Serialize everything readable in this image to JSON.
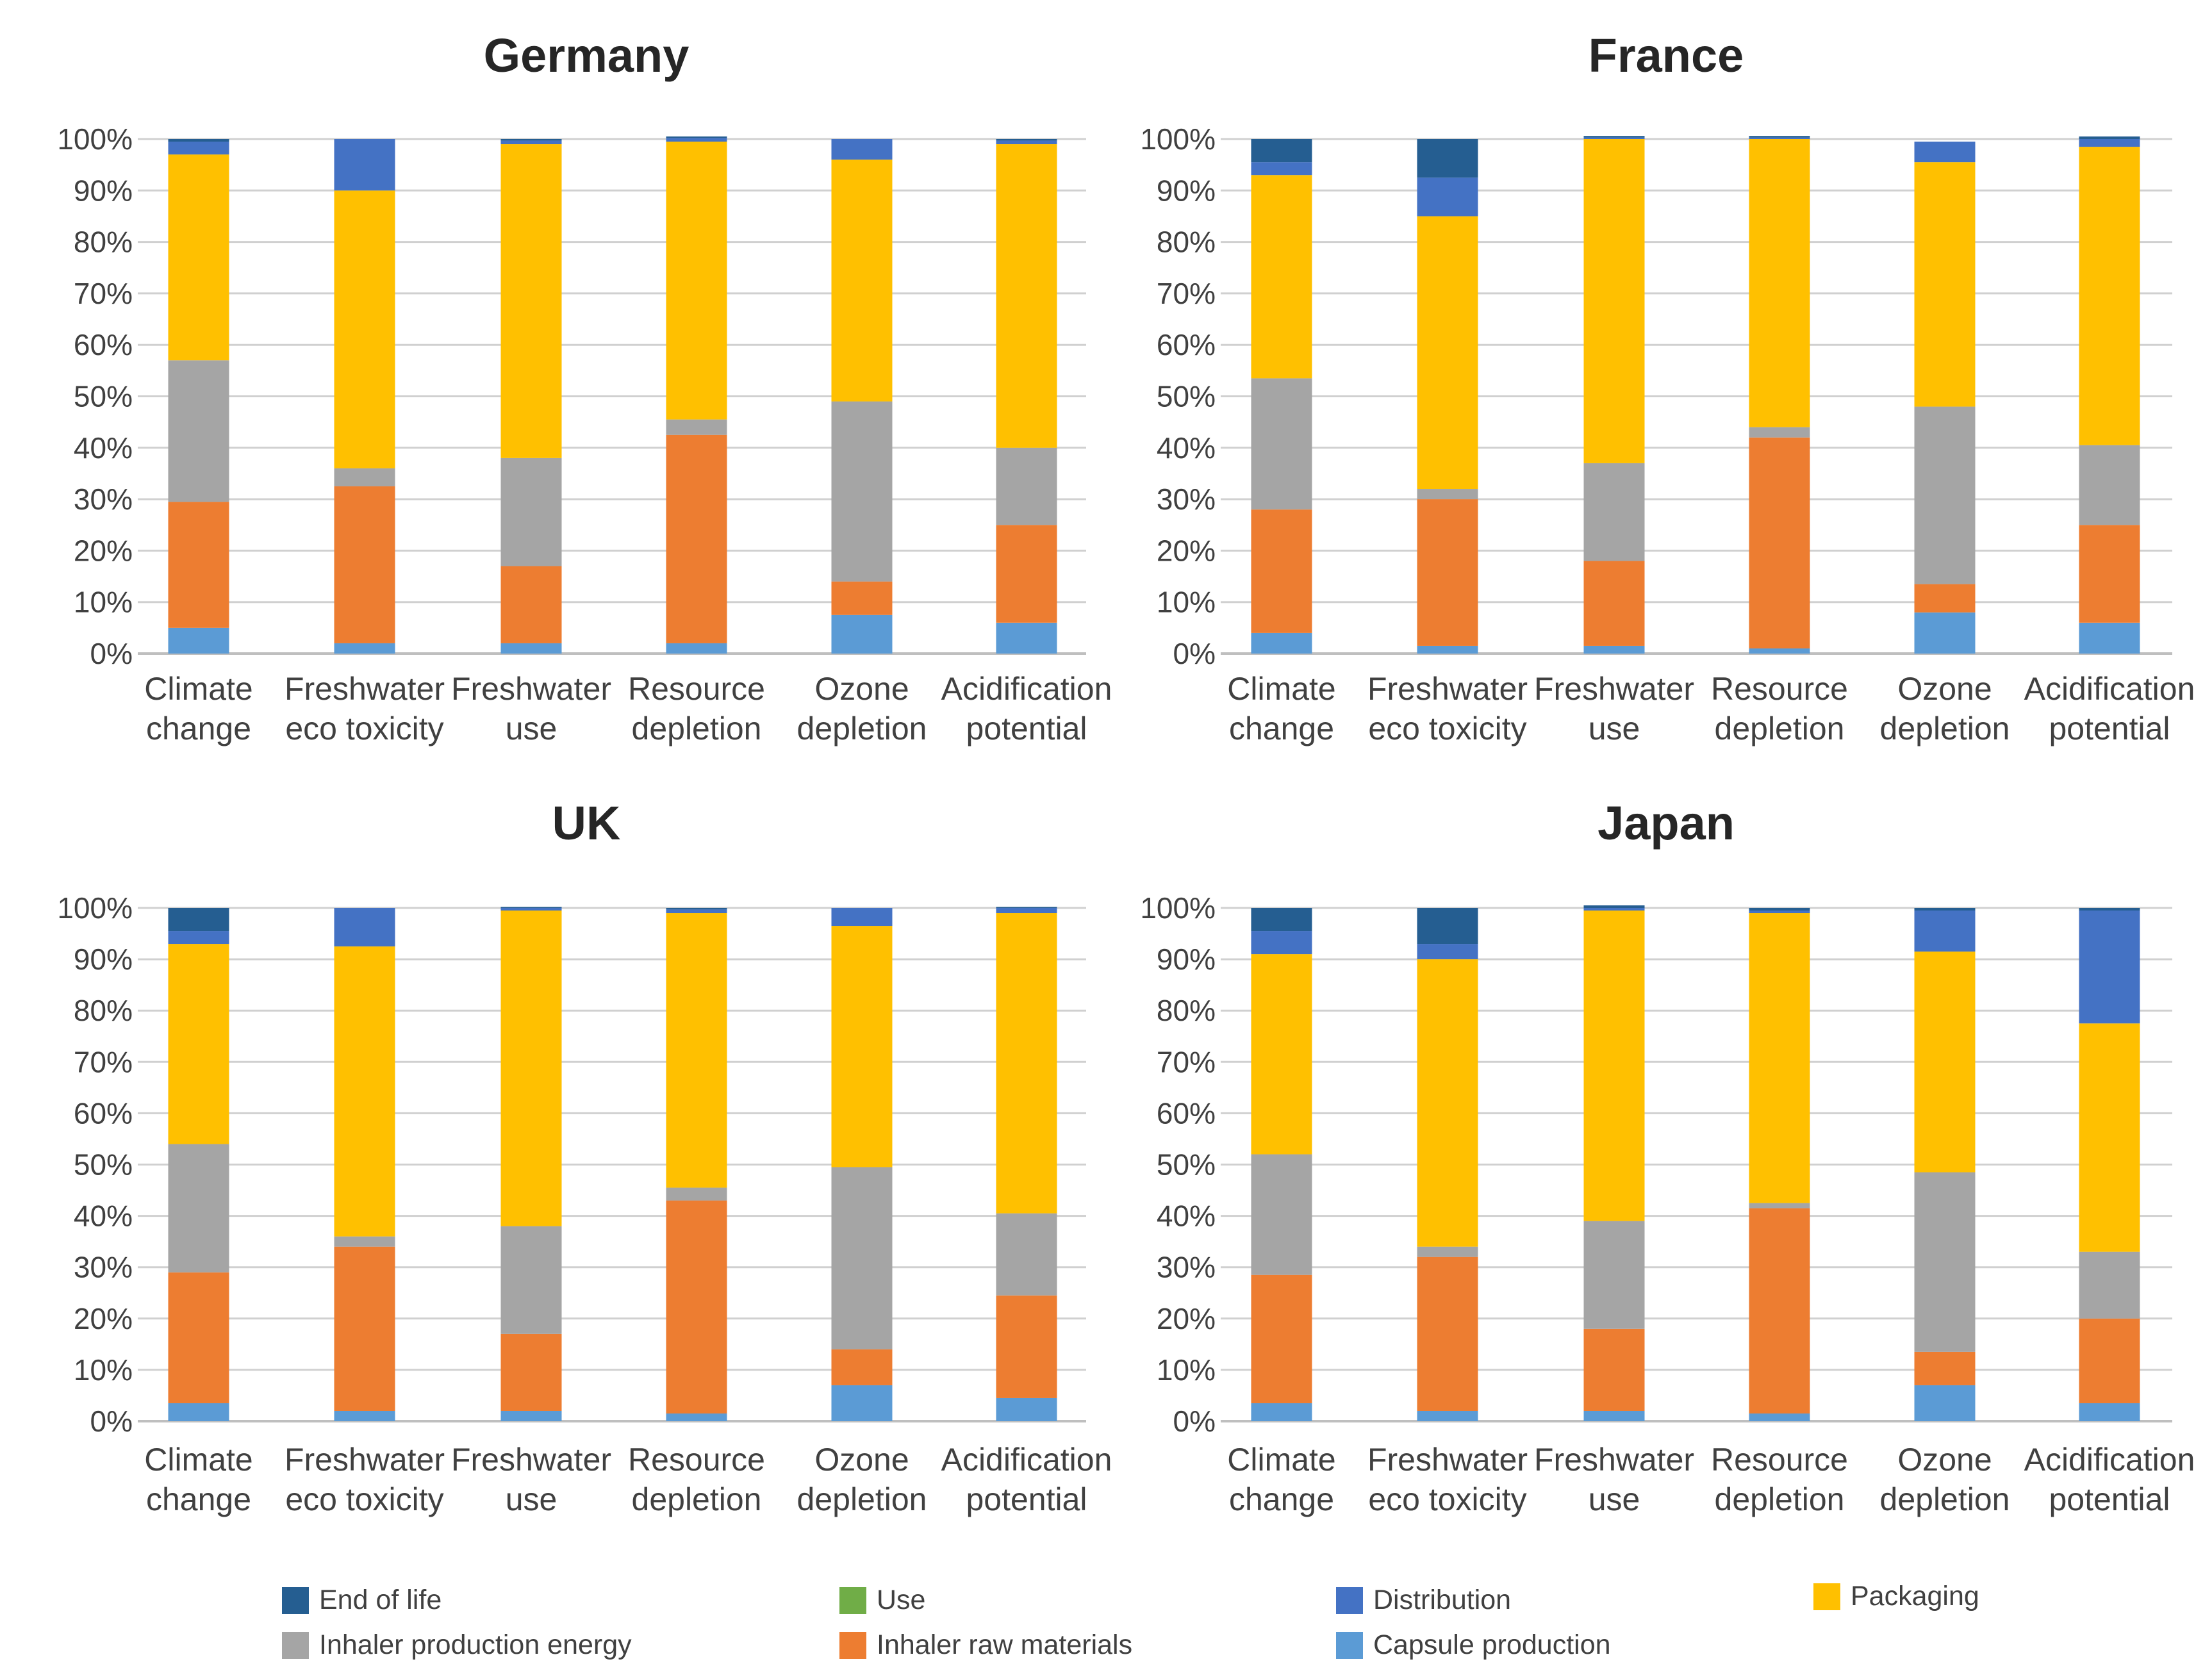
{
  "colors": {
    "End of life": "#255E91",
    "Distribution": "#4472C4",
    "Packaging": "#FFC000",
    "Use": "#70AD47",
    "Inhaler production energy": "#A5A5A5",
    "Inhaler raw materials": "#ED7D31",
    "Capsule production": "#5B9BD5"
  },
  "legend": [
    {
      "label": "End of life",
      "key": "End of life"
    },
    {
      "label": "Use",
      "key": "Use"
    },
    {
      "label": "Distribution",
      "key": "Distribution"
    },
    {
      "label": "Packaging",
      "key": "Packaging"
    },
    {
      "label": "Inhaler production energy",
      "key": "Inhaler production energy"
    },
    {
      "label": "Inhaler raw materials",
      "key": "Inhaler raw materials"
    },
    {
      "label": "Capsule production",
      "key": "Capsule production"
    }
  ],
  "chart_data": [
    {
      "type": "bar",
      "stacked": true,
      "title": "Germany",
      "categories": [
        [
          "Climate",
          "change"
        ],
        [
          "Freshwater",
          "eco toxicity"
        ],
        [
          "Freshwater",
          "use"
        ],
        [
          "Resource",
          "depletion"
        ],
        [
          "Ozone",
          "depletion"
        ],
        [
          "Acidification",
          "potential"
        ]
      ],
      "yticks": [
        "0%",
        "10%",
        "20%",
        "30%",
        "40%",
        "50%",
        "60%",
        "70%",
        "80%",
        "90%",
        "100%"
      ],
      "ylim": [
        0,
        100
      ],
      "series": [
        {
          "name": "Capsule production",
          "values": [
            5,
            2,
            2,
            2,
            7.5,
            6
          ]
        },
        {
          "name": "Inhaler raw materials",
          "values": [
            24.5,
            30.5,
            15,
            40.5,
            6.5,
            19
          ]
        },
        {
          "name": "Inhaler production energy",
          "values": [
            27.5,
            3.5,
            21,
            3,
            35,
            15
          ]
        },
        {
          "name": "Use",
          "values": [
            0,
            0,
            0,
            0,
            0,
            0
          ]
        },
        {
          "name": "Packaging",
          "values": [
            40,
            54,
            61,
            54,
            47,
            59
          ]
        },
        {
          "name": "Distribution",
          "values": [
            2.5,
            10,
            0.7,
            0.7,
            4,
            0.7
          ]
        },
        {
          "name": "End of life",
          "values": [
            0.5,
            0,
            0.3,
            0.3,
            0,
            0.3
          ]
        }
      ]
    },
    {
      "type": "bar",
      "stacked": true,
      "title": "France",
      "categories": [
        [
          "Climate",
          "change"
        ],
        [
          "Freshwater",
          "eco toxicity"
        ],
        [
          "Freshwater",
          "use"
        ],
        [
          "Resource",
          "depletion"
        ],
        [
          "Ozone",
          "depletion"
        ],
        [
          "Acidification",
          "potential"
        ]
      ],
      "yticks": [
        "0%",
        "10%",
        "20%",
        "30%",
        "40%",
        "50%",
        "60%",
        "70%",
        "80%",
        "90%",
        "100%"
      ],
      "ylim": [
        0,
        100
      ],
      "series": [
        {
          "name": "Capsule production",
          "values": [
            4,
            1.5,
            1.5,
            1,
            8,
            6
          ]
        },
        {
          "name": "Inhaler raw materials",
          "values": [
            24,
            28.5,
            16.5,
            41,
            5.5,
            19
          ]
        },
        {
          "name": "Inhaler production energy",
          "values": [
            25.5,
            2,
            19,
            2,
            34.5,
            15.5
          ]
        },
        {
          "name": "Use",
          "values": [
            0,
            0,
            0,
            0,
            0,
            0
          ]
        },
        {
          "name": "Packaging",
          "values": [
            39.5,
            53,
            63,
            56,
            47.5,
            58
          ]
        },
        {
          "name": "Distribution",
          "values": [
            2.5,
            7.5,
            0.3,
            0.3,
            4,
            1.5
          ]
        },
        {
          "name": "End of life",
          "values": [
            4.5,
            7.5,
            0.3,
            0.3,
            0,
            0.5
          ]
        }
      ]
    },
    {
      "type": "bar",
      "stacked": true,
      "title": "UK",
      "categories": [
        [
          "Climate",
          "change"
        ],
        [
          "Freshwater",
          "eco toxicity"
        ],
        [
          "Freshwater",
          "use"
        ],
        [
          "Resource",
          "depletion"
        ],
        [
          "Ozone",
          "depletion"
        ],
        [
          "Acidification",
          "potential"
        ]
      ],
      "yticks": [
        "0%",
        "10%",
        "20%",
        "30%",
        "40%",
        "50%",
        "60%",
        "70%",
        "80%",
        "90%",
        "100%"
      ],
      "ylim": [
        0,
        100
      ],
      "series": [
        {
          "name": "Capsule production",
          "values": [
            3.5,
            2,
            2,
            1.5,
            7,
            4.5
          ]
        },
        {
          "name": "Inhaler raw materials",
          "values": [
            25.5,
            32,
            15,
            41.5,
            7,
            20
          ]
        },
        {
          "name": "Inhaler production energy",
          "values": [
            25,
            2,
            21,
            2.5,
            35.5,
            16
          ]
        },
        {
          "name": "Use",
          "values": [
            0,
            0,
            0,
            0,
            0,
            0
          ]
        },
        {
          "name": "Packaging",
          "values": [
            39,
            56.5,
            61.5,
            53.5,
            47,
            58.5
          ]
        },
        {
          "name": "Distribution",
          "values": [
            2.5,
            7.5,
            0.5,
            0.7,
            3.5,
            1
          ]
        },
        {
          "name": "End of life",
          "values": [
            4.5,
            0,
            0.2,
            0.3,
            0,
            0.2
          ]
        }
      ]
    },
    {
      "type": "bar",
      "stacked": true,
      "title": "Japan",
      "categories": [
        [
          "Climate",
          "change"
        ],
        [
          "Freshwater",
          "eco toxicity"
        ],
        [
          "Freshwater",
          "use"
        ],
        [
          "Resource",
          "depletion"
        ],
        [
          "Ozone",
          "depletion"
        ],
        [
          "Acidification",
          "potential"
        ]
      ],
      "yticks": [
        "0%",
        "10%",
        "20%",
        "30%",
        "40%",
        "50%",
        "60%",
        "70%",
        "80%",
        "90%",
        "100%"
      ],
      "ylim": [
        0,
        100
      ],
      "series": [
        {
          "name": "Capsule production",
          "values": [
            3.5,
            2,
            2,
            1.5,
            7,
            3.5
          ]
        },
        {
          "name": "Inhaler raw materials",
          "values": [
            25,
            30,
            16,
            40,
            6.5,
            16.5
          ]
        },
        {
          "name": "Inhaler production energy",
          "values": [
            23.5,
            2,
            21,
            1,
            35,
            13
          ]
        },
        {
          "name": "Use",
          "values": [
            0,
            0,
            0,
            0,
            0,
            0
          ]
        },
        {
          "name": "Packaging",
          "values": [
            39,
            56,
            60.5,
            56.5,
            43,
            44.5
          ]
        },
        {
          "name": "Distribution",
          "values": [
            4.5,
            3,
            0.5,
            0.5,
            8,
            22
          ]
        },
        {
          "name": "End of life",
          "values": [
            4.5,
            7,
            0.5,
            0.5,
            0.5,
            0.5
          ]
        }
      ]
    }
  ]
}
